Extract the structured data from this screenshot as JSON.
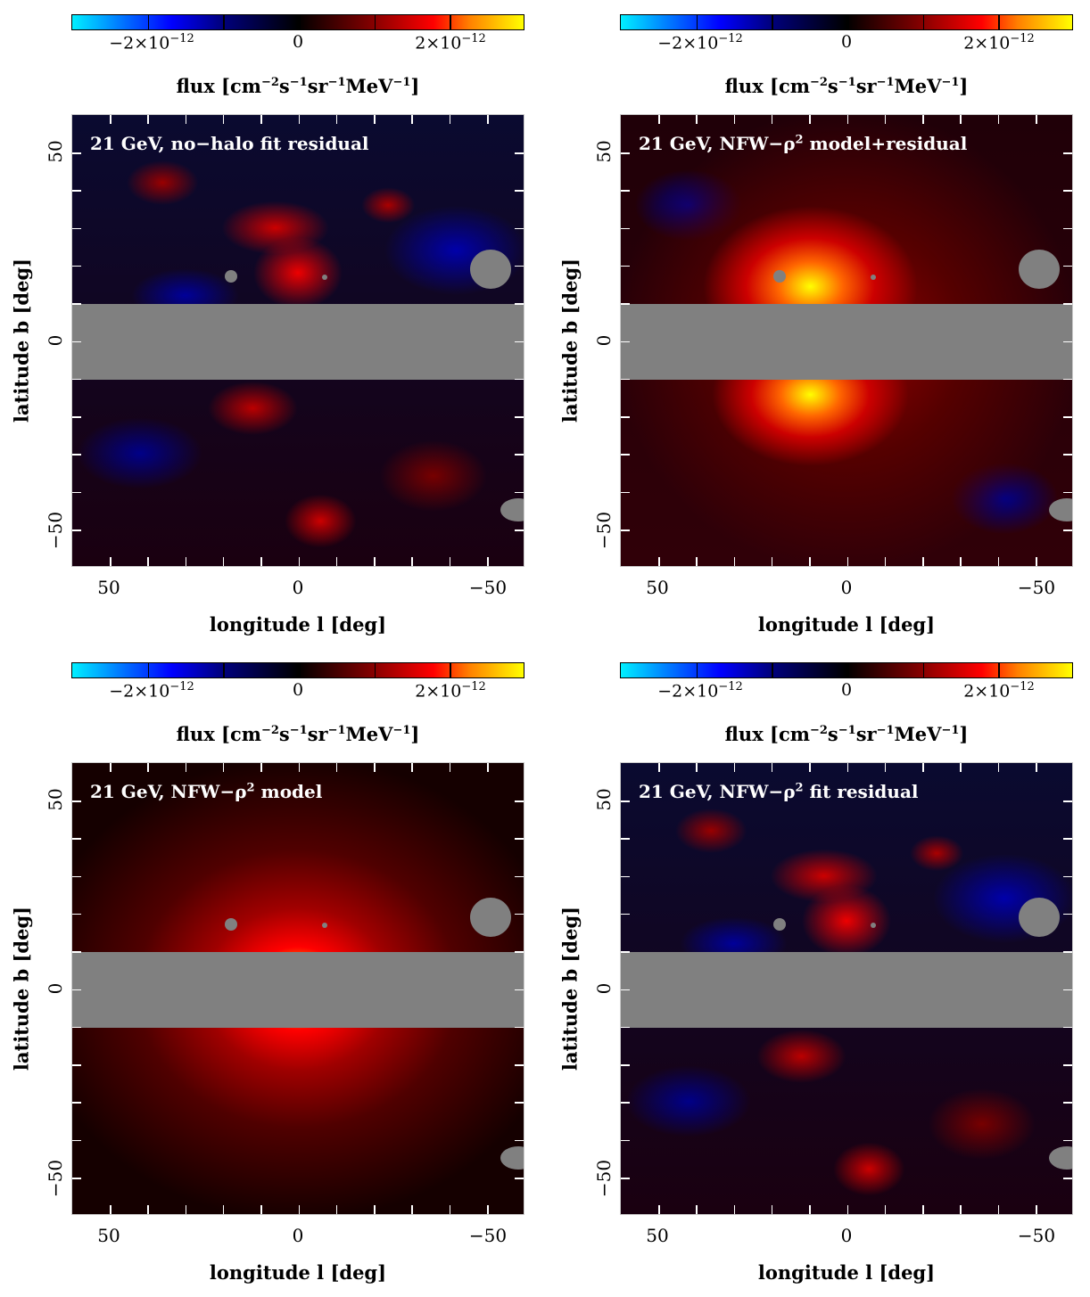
{
  "colorbar": {
    "labels": [
      "−2×10",
      "0",
      "2×10"
    ],
    "exponent": "−12",
    "title_main": "flux [cm",
    "title_units": [
      "−2",
      "s",
      "−1",
      "sr",
      "−1",
      "MeV",
      "−1",
      "]"
    ],
    "range": [
      -3e-12,
      3e-12
    ],
    "colormap": [
      "#00f0ff",
      "#0000ff",
      "#000000",
      "#ff0000",
      "#ffff00"
    ]
  },
  "axes": {
    "x_title": "longitude l [deg]",
    "y_title": "latitude b [deg]",
    "x_ticks": [
      "50",
      "0",
      "−50"
    ],
    "y_ticks": [
      "50",
      "0",
      "−50"
    ]
  },
  "panels": [
    {
      "label": "21 GeV, no−halo fit residual",
      "label_pre": "21 GeV, no−halo fit residual",
      "label_post": ""
    },
    {
      "label": "21 GeV, NFW−ρ² model+residual",
      "label_pre": "21 GeV, NFW−ρ",
      "label_post": " model+residual"
    },
    {
      "label": "21 GeV, NFW−ρ² model",
      "label_pre": "21 GeV, NFW−ρ",
      "label_post": " model"
    },
    {
      "label": "21 GeV, NFW−ρ² fit residual",
      "label_pre": "21 GeV, NFW−ρ",
      "label_post": " fit residual"
    }
  ],
  "chart_data": {
    "type": "heatmap",
    "title": "21 GeV sky maps (Fermi residual / NFW-rho^2 model)",
    "xlabel": "longitude l [deg]",
    "ylabel": "latitude b [deg]",
    "xlim": [
      60,
      -60
    ],
    "ylim": [
      -60,
      60
    ],
    "x_ticks": [
      50,
      0,
      -50
    ],
    "y_ticks": [
      50,
      0,
      -50
    ],
    "colorbar_label": "flux [cm^-2 s^-1 sr^-1 MeV^-1]",
    "colorbar_ticks": [
      -2e-12,
      0,
      2e-12
    ],
    "colorbar_range": [
      -3e-12,
      3e-12
    ],
    "masked_band_b": [
      -10,
      10
    ],
    "masked_sources": [
      {
        "l": 18,
        "b": 17,
        "r_deg": 1.5
      },
      {
        "l": -7,
        "b": 17,
        "r_deg": 0.5
      },
      {
        "l": -51,
        "b": 19,
        "r_deg": 5
      },
      {
        "l": -57,
        "b": -44,
        "r_deg": 3
      }
    ],
    "panels": [
      {
        "label": "21 GeV, no-halo fit residual",
        "position": "top-left"
      },
      {
        "label": "21 GeV, NFW-rho^2 model+residual",
        "position": "top-right"
      },
      {
        "label": "21 GeV, NFW-rho^2 model",
        "position": "bottom-left"
      },
      {
        "label": "21 GeV, NFW-rho^2 fit residual",
        "position": "bottom-right"
      }
    ]
  }
}
